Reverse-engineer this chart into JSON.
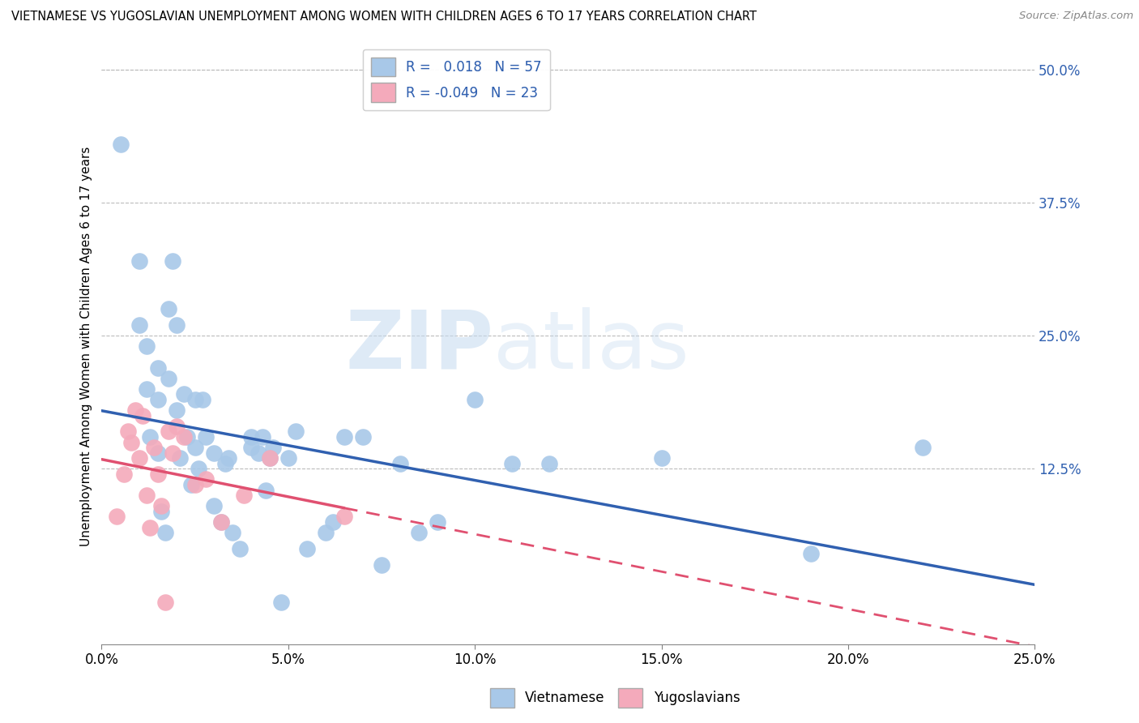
{
  "title": "VIETNAMESE VS YUGOSLAVIAN UNEMPLOYMENT AMONG WOMEN WITH CHILDREN AGES 6 TO 17 YEARS CORRELATION CHART",
  "source": "Source: ZipAtlas.com",
  "ylabel": "Unemployment Among Women with Children Ages 6 to 17 years",
  "xlim": [
    0.0,
    0.25
  ],
  "ylim": [
    -0.04,
    0.52
  ],
  "ytick_right_labels": [
    "50.0%",
    "37.5%",
    "25.0%",
    "12.5%"
  ],
  "ytick_right_values": [
    0.5,
    0.375,
    0.25,
    0.125
  ],
  "xtick_vals": [
    0.0,
    0.05,
    0.1,
    0.15,
    0.2,
    0.25
  ],
  "xtick_labels": [
    "0.0%",
    "5.0%",
    "10.0%",
    "15.0%",
    "20.0%",
    "25.0%"
  ],
  "viet_R": 0.018,
  "viet_N": 57,
  "yugo_R": -0.049,
  "yugo_N": 23,
  "viet_color": "#A8C8E8",
  "yugo_color": "#F4AABB",
  "viet_line_color": "#3060B0",
  "yugo_line_color": "#E05070",
  "watermark_color": "#D8E8F0",
  "background_color": "#FFFFFF",
  "viet_x": [
    0.005,
    0.01,
    0.01,
    0.012,
    0.012,
    0.013,
    0.015,
    0.015,
    0.015,
    0.016,
    0.017,
    0.018,
    0.018,
    0.019,
    0.02,
    0.02,
    0.021,
    0.022,
    0.023,
    0.024,
    0.025,
    0.025,
    0.026,
    0.027,
    0.028,
    0.03,
    0.03,
    0.032,
    0.033,
    0.034,
    0.035,
    0.037,
    0.04,
    0.04,
    0.042,
    0.043,
    0.044,
    0.045,
    0.046,
    0.048,
    0.05,
    0.052,
    0.055,
    0.06,
    0.062,
    0.065,
    0.07,
    0.075,
    0.08,
    0.085,
    0.09,
    0.1,
    0.11,
    0.12,
    0.15,
    0.19,
    0.22
  ],
  "viet_y": [
    0.43,
    0.32,
    0.26,
    0.24,
    0.2,
    0.155,
    0.22,
    0.19,
    0.14,
    0.085,
    0.065,
    0.275,
    0.21,
    0.32,
    0.26,
    0.18,
    0.135,
    0.195,
    0.155,
    0.11,
    0.145,
    0.19,
    0.125,
    0.19,
    0.155,
    0.14,
    0.09,
    0.075,
    0.13,
    0.135,
    0.065,
    0.05,
    0.155,
    0.145,
    0.14,
    0.155,
    0.105,
    0.135,
    0.145,
    0.0,
    0.135,
    0.16,
    0.05,
    0.065,
    0.075,
    0.155,
    0.155,
    0.035,
    0.13,
    0.065,
    0.075,
    0.19,
    0.13,
    0.13,
    0.135,
    0.045,
    0.145
  ],
  "yugo_x": [
    0.004,
    0.006,
    0.007,
    0.008,
    0.009,
    0.01,
    0.011,
    0.012,
    0.013,
    0.014,
    0.015,
    0.016,
    0.017,
    0.018,
    0.019,
    0.02,
    0.022,
    0.025,
    0.028,
    0.032,
    0.038,
    0.045,
    0.065
  ],
  "yugo_y": [
    0.08,
    0.12,
    0.16,
    0.15,
    0.18,
    0.135,
    0.175,
    0.1,
    0.07,
    0.145,
    0.12,
    0.09,
    0.0,
    0.16,
    0.14,
    0.165,
    0.155,
    0.11,
    0.115,
    0.075,
    0.1,
    0.135,
    0.08
  ],
  "yugo_solid_xlim": [
    0.0,
    0.065
  ],
  "yugo_dash_xlim": [
    0.065,
    0.25
  ]
}
